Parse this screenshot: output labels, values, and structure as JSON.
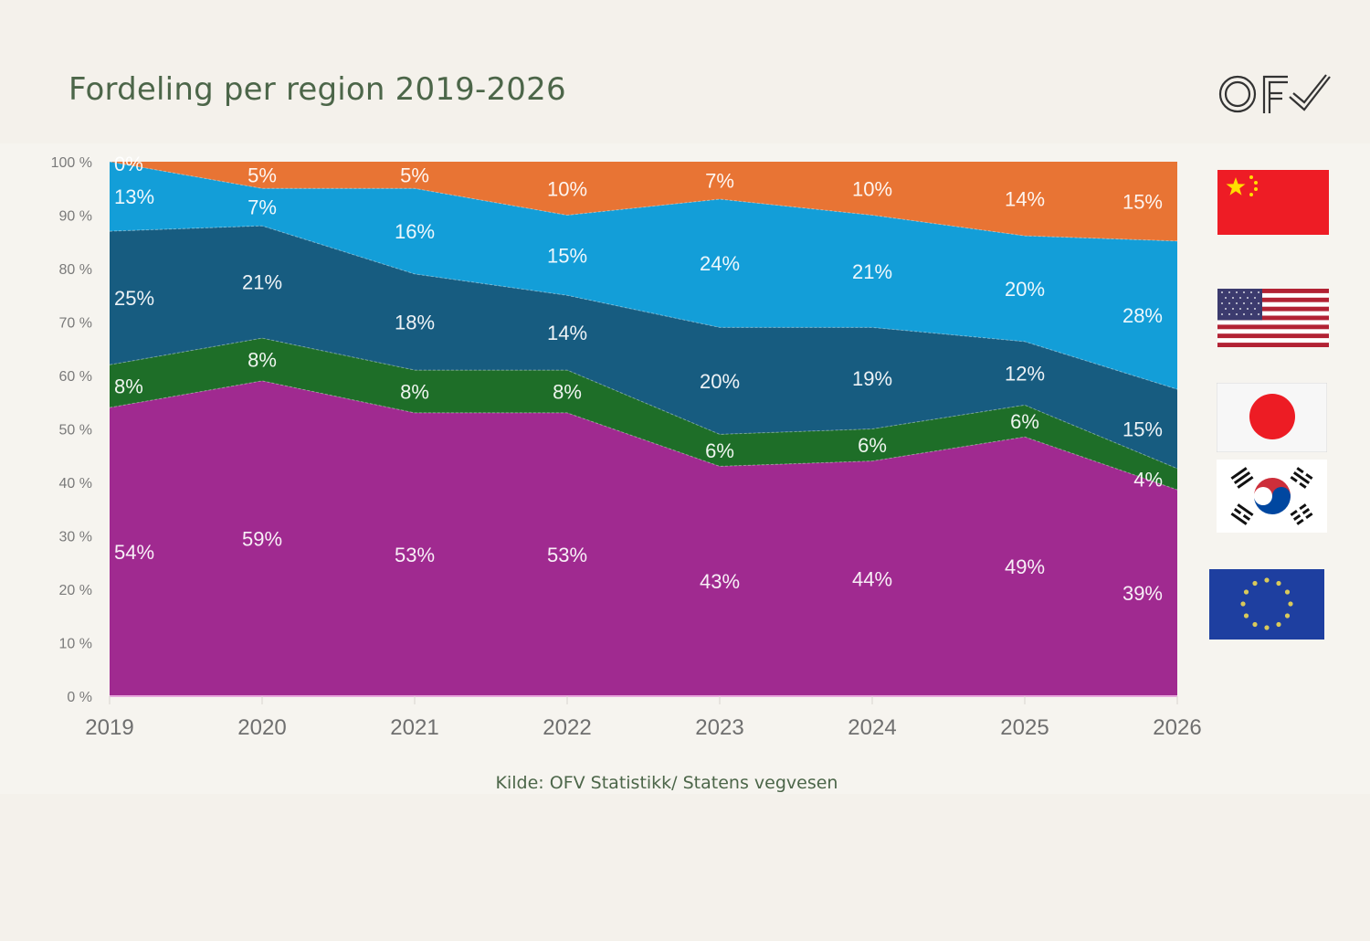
{
  "header": {
    "title": "Fordeling per region 2019-2026",
    "logo_text": "OFV"
  },
  "footer": {
    "source": "Kilde: OFV Statistikk/ Statens vegvesen"
  },
  "legend_flags": [
    {
      "region": "China",
      "icon": "china-flag-icon"
    },
    {
      "region": "USA",
      "icon": "usa-flag-icon"
    },
    {
      "region": "Japan",
      "icon": "japan-flag-icon"
    },
    {
      "region": "South Korea",
      "icon": "south-korea-flag-icon"
    },
    {
      "region": "Europe",
      "icon": "eu-flag-icon"
    }
  ],
  "chart_data": {
    "type": "area",
    "stacked": true,
    "normalized": true,
    "title": "Fordeling per region 2019-2026",
    "xlabel": "",
    "ylabel": "",
    "categories": [
      "2019",
      "2020",
      "2021",
      "2022",
      "2023",
      "2024",
      "2025",
      "2026"
    ],
    "ylim": [
      0,
      100
    ],
    "y_ticks": [
      "0 %",
      "10 %",
      "20 %",
      "30 %",
      "40 %",
      "50 %",
      "60 %",
      "70 %",
      "80 %",
      "90 %",
      "100 %"
    ],
    "grid": false,
    "legend": "right (flag icons)",
    "series": [
      {
        "name": "Europe",
        "color": "#a02a90",
        "values": [
          54,
          59,
          53,
          53,
          43,
          44,
          49,
          39
        ],
        "labels": [
          "54%",
          "59%",
          "53%",
          "53%",
          "43%",
          "44%",
          "49%",
          "39%"
        ]
      },
      {
        "name": "South Korea",
        "color": "#1e6e28",
        "values": [
          8,
          8,
          8,
          8,
          6,
          6,
          6,
          4
        ],
        "labels": [
          "8%",
          "8%",
          "8%",
          "8%",
          "6%",
          "6%",
          "6%",
          "4%"
        ]
      },
      {
        "name": "Japan",
        "color": "#175c80",
        "values": [
          25,
          21,
          18,
          14,
          20,
          19,
          12,
          15
        ],
        "labels": [
          "25%",
          "21%",
          "18%",
          "14%",
          "20%",
          "19%",
          "12%",
          "15%"
        ]
      },
      {
        "name": "USA",
        "color": "#139ed8",
        "values": [
          13,
          7,
          16,
          15,
          24,
          21,
          20,
          28
        ],
        "labels": [
          "13%",
          "7%",
          "16%",
          "15%",
          "24%",
          "21%",
          "20%",
          "28%"
        ]
      },
      {
        "name": "China",
        "color": "#e87434",
        "values": [
          0,
          5,
          5,
          10,
          7,
          10,
          14,
          15
        ],
        "labels": [
          "0%",
          "5%",
          "5%",
          "10%",
          "7%",
          "10%",
          "14%",
          "15%"
        ]
      }
    ]
  }
}
